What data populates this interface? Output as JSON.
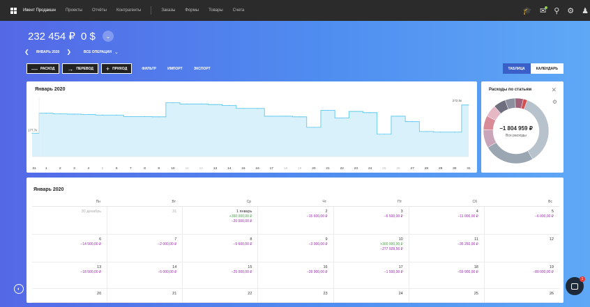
{
  "topbar": {
    "nav": [
      "Ивент Продакшн",
      "Проекты",
      "Отчёты",
      "Контрагенты"
    ],
    "nav2": [
      "Заказы",
      "Формы",
      "Товары",
      "Счета"
    ]
  },
  "balance": {
    "rub": "232 454 ₽",
    "usd": "0 $"
  },
  "period": {
    "month": "ЯНВАРЬ 2020",
    "filter": "ВСЕ ОПЕРАЦИИ"
  },
  "actions": {
    "expense": "РАСХОД",
    "transfer": "ПЕРЕВОД",
    "income": "ПРИХОД",
    "filter": "ФИЛЬТР",
    "import": "ИМПОРТ",
    "export": "ЭКСПОРТ"
  },
  "views": {
    "table": "ТАБЛИЦА",
    "calendar": "КАЛЕНДАРЬ"
  },
  "chart": {
    "title": "Январь 2020",
    "start_label": "177,7к",
    "end_label": "272,5к",
    "fill": "#d8f1fb",
    "stroke": "#4cc2ec"
  },
  "chart_data": {
    "type": "area",
    "title": "Январь 2020",
    "x": [
      "31",
      "1",
      "2",
      "3",
      "4",
      "5",
      "6",
      "7",
      "8",
      "9",
      "10",
      "11",
      "12",
      "13",
      "14",
      "15",
      "16",
      "17",
      "18",
      "19",
      "20",
      "21",
      "22",
      "23",
      "24",
      "25",
      "26",
      "27",
      "28",
      "29",
      "30",
      "31"
    ],
    "values": [
      177.7,
      245,
      243,
      242,
      241,
      239,
      239,
      234,
      234,
      233,
      280,
      276,
      276,
      274,
      271,
      261,
      261,
      235,
      235,
      233,
      198,
      255,
      229,
      251,
      247,
      175,
      235,
      217,
      184,
      182,
      182,
      272.5
    ],
    "muted_days": [
      "5",
      "11",
      "12",
      "18",
      "19",
      "25",
      "26"
    ],
    "ylim": [
      100,
      300
    ],
    "grid": false
  },
  "pie": {
    "title": "Расходы по статьям",
    "total": "−1 804 959 ₽",
    "subtitle": "Все расходы",
    "colors": [
      "#b7c2cc",
      "#9aa7b3",
      "#c9a5b9",
      "#d98c98",
      "#e6b7c4",
      "#6e6e7e",
      "#8b8f9e",
      "#a0627a",
      "#d25050"
    ]
  },
  "calendar": {
    "title": "Январь 2020",
    "weekdays": [
      "Пн",
      "Вт",
      "Ср",
      "Чт",
      "Пт",
      "Сб",
      "Вс"
    ],
    "rows": [
      [
        {
          "day": "30 декабрь",
          "muted": true,
          "lines": []
        },
        {
          "day": "31",
          "muted": true,
          "lines": []
        },
        {
          "day": "1 январь",
          "lines": [
            {
              "t": "inc",
              "v": "+350 000,00 ₽"
            },
            {
              "t": "exp",
              "v": "−20 000,00 ₽"
            }
          ]
        },
        {
          "day": "2",
          "lines": [
            {
              "t": "exp",
              "v": "−15 600,00 ₽"
            }
          ]
        },
        {
          "day": "3",
          "lines": [
            {
              "t": "exp",
              "v": "−6 500,00 ₽"
            }
          ]
        },
        {
          "day": "4",
          "lines": [
            {
              "t": "exp",
              "v": "−11 000,00 ₽"
            }
          ]
        },
        {
          "day": "5",
          "lines": [
            {
              "t": "exp",
              "v": "−6 000,00 ₽"
            }
          ]
        }
      ],
      [
        {
          "day": "6",
          "lines": [
            {
              "t": "exp",
              "v": "−14 500,00 ₽"
            }
          ]
        },
        {
          "day": "7",
          "lines": [
            {
              "t": "exp",
              "v": "−2 000,00 ₽"
            }
          ]
        },
        {
          "day": "8",
          "lines": [
            {
              "t": "exp",
              "v": "−9 600,00 ₽"
            }
          ]
        },
        {
          "day": "9",
          "lines": [
            {
              "t": "exp",
              "v": "−3 000,00 ₽"
            }
          ]
        },
        {
          "day": "10",
          "lines": [
            {
              "t": "inc",
              "v": "+300 000,00 ₽"
            },
            {
              "t": "exp",
              "v": "−277 928,56 ₽"
            }
          ]
        },
        {
          "day": "11",
          "lines": [
            {
              "t": "exp",
              "v": "−35 250,00 ₽"
            }
          ]
        },
        {
          "day": "12",
          "lines": []
        }
      ],
      [
        {
          "day": "13",
          "lines": [
            {
              "t": "exp",
              "v": "−18 500,00 ₽"
            }
          ]
        },
        {
          "day": "14",
          "lines": [
            {
              "t": "exp",
              "v": "−5 000,00 ₽"
            }
          ]
        },
        {
          "day": "15",
          "lines": [
            {
              "t": "exp",
              "v": "−25 000,00 ₽"
            }
          ]
        },
        {
          "day": "16",
          "lines": [
            {
              "t": "exp",
              "v": "−39 900,00 ₽"
            }
          ]
        },
        {
          "day": "17",
          "lines": [
            {
              "t": "exp",
              "v": "−1 500,00 ₽"
            }
          ]
        },
        {
          "day": "18",
          "lines": [
            {
              "t": "exp",
              "v": "−59 900,00 ₽"
            }
          ]
        },
        {
          "day": "19",
          "lines": [
            {
              "t": "exp",
              "v": "−80 000,00 ₽"
            }
          ]
        }
      ],
      [
        {
          "day": "20",
          "lines": []
        },
        {
          "day": "21",
          "lines": []
        },
        {
          "day": "22",
          "lines": []
        },
        {
          "day": "23",
          "lines": []
        },
        {
          "day": "24",
          "lines": []
        },
        {
          "day": "25",
          "lines": []
        },
        {
          "day": "26",
          "lines": []
        }
      ]
    ]
  },
  "icons": {
    "apps": "grid-icon",
    "graduation": "graduation-icon",
    "notifications": "bell-icon",
    "search": "search-icon",
    "settings": "gear-icon",
    "user": "user-icon",
    "chat_badge": "1"
  }
}
